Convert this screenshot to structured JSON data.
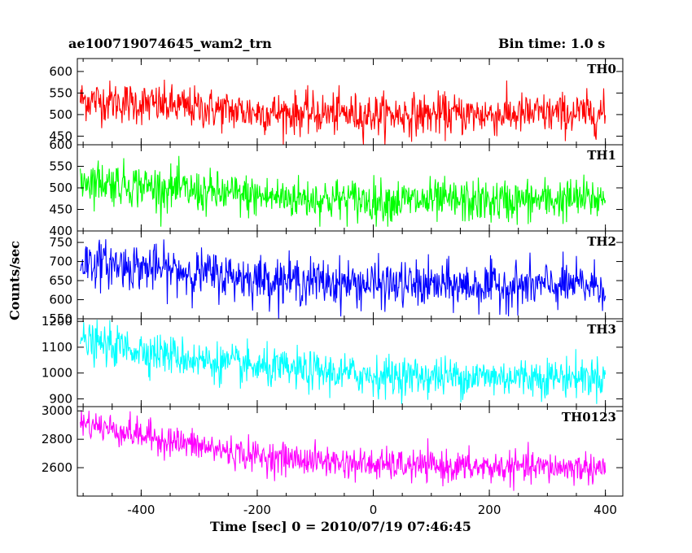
{
  "title": "ae100719074645_wam2_trn",
  "bin_time_label": "Bin time: 1.0 s",
  "chart_data": {
    "type": "line",
    "title": "ae100719074645_wam2_trn",
    "xlabel": "Time [sec] 0 = 2010/07/19 07:46:45",
    "ylabel": "Counts/sec",
    "xlim": [
      -510,
      430
    ],
    "x_ticks": [
      -400,
      -200,
      0,
      200,
      400
    ],
    "x_range": [
      -505,
      400
    ],
    "grid": false,
    "panels": [
      {
        "name": "TH0",
        "color": "#ff0000",
        "ylim": [
          430,
          630
        ],
        "y_ticks": [
          450,
          500,
          550,
          600
        ],
        "trend": [
          [
            -505,
            535
          ],
          [
            -400,
            525
          ],
          [
            -300,
            515
          ],
          [
            -200,
            505
          ],
          [
            0,
            500
          ],
          [
            200,
            500
          ],
          [
            400,
            503
          ]
        ],
        "noise_sd": 24,
        "data_range": [
          430,
          630
        ]
      },
      {
        "name": "TH1",
        "color": "#00ff00",
        "ylim": [
          400,
          600
        ],
        "y_ticks": [
          400,
          450,
          500,
          550,
          600
        ],
        "trend": [
          [
            -505,
            520
          ],
          [
            -400,
            505
          ],
          [
            -300,
            490
          ],
          [
            -200,
            480
          ],
          [
            0,
            470
          ],
          [
            200,
            468
          ],
          [
            400,
            475
          ]
        ],
        "noise_sd": 25,
        "data_range": [
          410,
          600
        ]
      },
      {
        "name": "TH2",
        "color": "#0000ff",
        "ylim": [
          550,
          780
        ],
        "y_ticks": [
          550,
          600,
          650,
          700,
          750
        ],
        "trend": [
          [
            -505,
            700
          ],
          [
            -400,
            685
          ],
          [
            -300,
            670
          ],
          [
            -200,
            655
          ],
          [
            0,
            640
          ],
          [
            200,
            635
          ],
          [
            400,
            638
          ]
        ],
        "noise_sd": 30,
        "data_range": [
          550,
          780
        ]
      },
      {
        "name": "TH3",
        "color": "#00ffff",
        "ylim": [
          870,
          1210
        ],
        "y_ticks": [
          900,
          1000,
          1100,
          1200
        ],
        "trend": [
          [
            -505,
            1120
          ],
          [
            -400,
            1090
          ],
          [
            -300,
            1050
          ],
          [
            -200,
            1020
          ],
          [
            0,
            990
          ],
          [
            200,
            985
          ],
          [
            400,
            985
          ]
        ],
        "noise_sd": 38,
        "data_range": [
          880,
          1210
        ]
      },
      {
        "name": "TH0123",
        "color": "#ff00ff",
        "ylim": [
          2400,
          3030
        ],
        "y_ticks": [
          2600,
          2800,
          3000
        ],
        "trend": [
          [
            -505,
            2920
          ],
          [
            -400,
            2830
          ],
          [
            -300,
            2750
          ],
          [
            -200,
            2680
          ],
          [
            0,
            2620
          ],
          [
            200,
            2600
          ],
          [
            400,
            2600
          ]
        ],
        "noise_sd": 55,
        "data_range": [
          2410,
          3030
        ]
      }
    ]
  }
}
